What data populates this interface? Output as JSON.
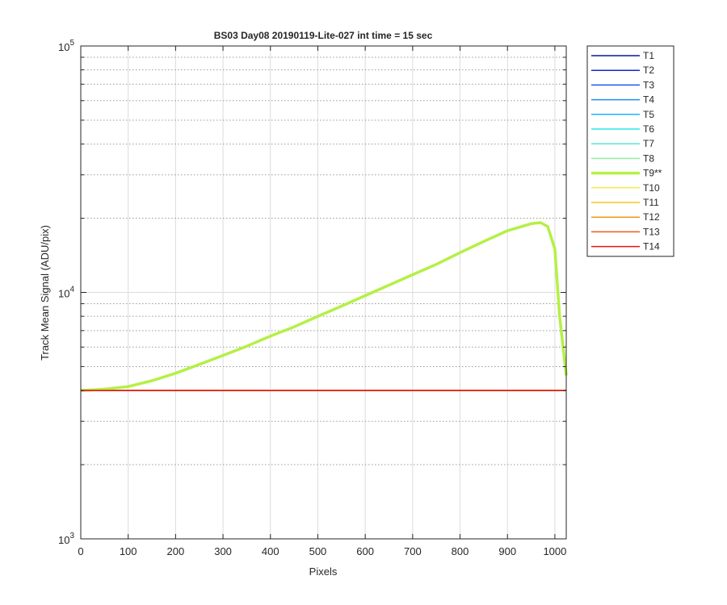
{
  "chart_data": {
    "type": "line",
    "title": "BS03 Day08 20190119-Lite-027 int time = 15 sec",
    "xlabel": "Pixels",
    "ylabel": "Track Mean Signal (ADU/pix)",
    "xlim": [
      0,
      1024
    ],
    "ylim": [
      1000,
      100000
    ],
    "yscale": "log",
    "grid": true,
    "legend_location": "outside-top-right",
    "xticks": [
      0,
      100,
      200,
      300,
      400,
      500,
      600,
      700,
      800,
      900,
      1000
    ],
    "x_tick_labels": [
      "0",
      "100",
      "200",
      "300",
      "400",
      "500",
      "600",
      "700",
      "800",
      "900",
      "1000"
    ],
    "yticks": [
      1000,
      10000,
      100000
    ],
    "y_tick_labels": [
      {
        "base": "10",
        "exp": "3"
      },
      {
        "base": "10",
        "exp": "4"
      },
      {
        "base": "10",
        "exp": "5"
      }
    ],
    "series": [
      {
        "name": "T1",
        "color": "#0a1a8f",
        "x": [
          0,
          1024
        ],
        "y": [
          4000,
          4000
        ]
      },
      {
        "name": "T2",
        "color": "#1428c8",
        "x": [
          0,
          1024
        ],
        "y": [
          4000,
          4000
        ]
      },
      {
        "name": "T3",
        "color": "#1e5ae6",
        "x": [
          0,
          1024
        ],
        "y": [
          4000,
          4000
        ]
      },
      {
        "name": "T4",
        "color": "#1e8cf0",
        "x": [
          0,
          1024
        ],
        "y": [
          4000,
          4000
        ]
      },
      {
        "name": "T5",
        "color": "#1eb4f0",
        "x": [
          0,
          1024
        ],
        "y": [
          4000,
          4000
        ]
      },
      {
        "name": "T6",
        "color": "#28e6e6",
        "x": [
          0,
          1024
        ],
        "y": [
          4000,
          4000
        ]
      },
      {
        "name": "T7",
        "color": "#5ae6c8",
        "x": [
          0,
          1024
        ],
        "y": [
          4000,
          4000
        ]
      },
      {
        "name": "T8",
        "color": "#8cf0a0",
        "x": [
          0,
          1024
        ],
        "y": [
          4000,
          4000
        ]
      },
      {
        "name": "T9**",
        "color": "#b4f046",
        "bold": true,
        "x": [
          0,
          50,
          100,
          150,
          200,
          250,
          300,
          350,
          400,
          450,
          500,
          550,
          600,
          650,
          700,
          750,
          800,
          850,
          900,
          950,
          970,
          985,
          1000,
          1010,
          1024
        ],
        "y": [
          4000,
          4050,
          4150,
          4380,
          4700,
          5100,
          5550,
          6050,
          6650,
          7250,
          8000,
          8800,
          9700,
          10700,
          11800,
          13000,
          14500,
          16100,
          17800,
          19000,
          19200,
          18500,
          15000,
          8000,
          4600
        ]
      },
      {
        "name": "T10",
        "color": "#f0f046",
        "x": [
          0,
          1024
        ],
        "y": [
          4000,
          4000
        ]
      },
      {
        "name": "T11",
        "color": "#f0c81e",
        "x": [
          0,
          1024
        ],
        "y": [
          4000,
          4000
        ]
      },
      {
        "name": "T12",
        "color": "#f09614",
        "x": [
          0,
          1024
        ],
        "y": [
          4000,
          4000
        ]
      },
      {
        "name": "T13",
        "color": "#f05a14",
        "x": [
          0,
          1024
        ],
        "y": [
          4000,
          4000
        ]
      },
      {
        "name": "T14",
        "color": "#e61414",
        "x": [
          0,
          1024
        ],
        "y": [
          4000,
          4000
        ]
      }
    ]
  }
}
